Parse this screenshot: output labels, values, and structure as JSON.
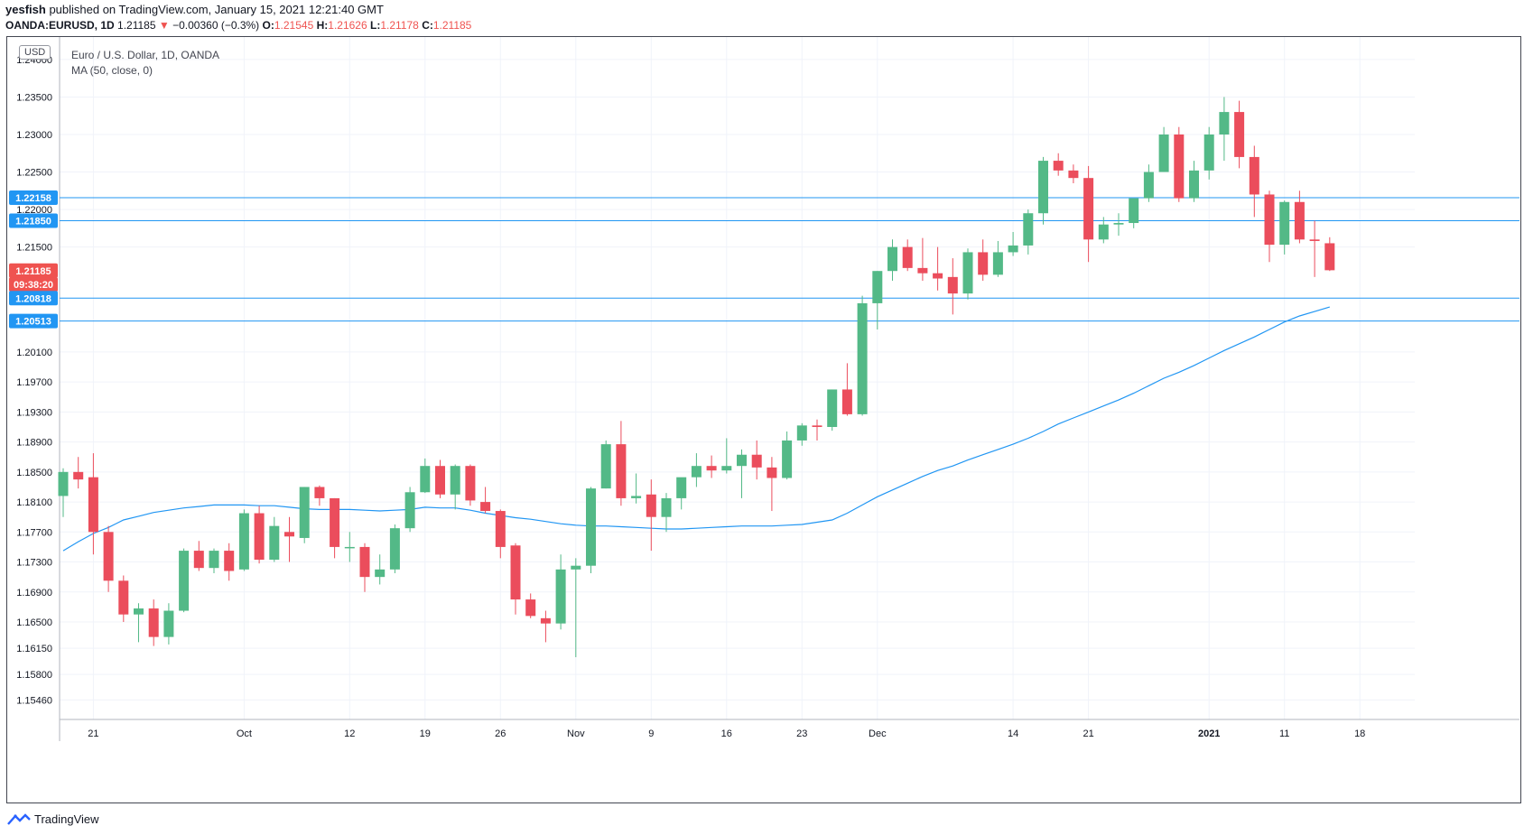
{
  "header": {
    "author": "yesfish",
    "published": "published on TradingView.com, January 15, 2021 12:21:40 GMT"
  },
  "ohlc": {
    "symbol": "OANDA:EURUSD, 1D",
    "last": "1.21185",
    "arrow": "▼",
    "change": "−0.00360 (−0.3%)",
    "o_label": "O:",
    "o": "1.21545",
    "h_label": "H:",
    "h": "1.21626",
    "l_label": "L:",
    "l": "1.21178",
    "c_label": "C:",
    "c": "1.21185"
  },
  "legend": {
    "title": "Euro / U.S. Dollar, 1D, OANDA",
    "indicator": "MA (50, close, 0)"
  },
  "currency_button": "USD",
  "footer": {
    "brand": "TradingView"
  },
  "colors": {
    "up": "#26a69a",
    "down": "#ef5350",
    "ma": "#2196f3",
    "hline": "#2196f3",
    "up_fill": "#53b987",
    "down_fill": "#eb4d5c"
  },
  "chart_data": {
    "type": "candlestick",
    "title": "Euro / U.S. Dollar, 1D, OANDA",
    "ylim": [
      1.152,
      1.243
    ],
    "y_ticks": [
      "1.24000",
      "1.23500",
      "1.23000",
      "1.22500",
      "1.22000",
      "1.21500",
      "1.20100",
      "1.19700",
      "1.19300",
      "1.18900",
      "1.18500",
      "1.18100",
      "1.17700",
      "1.17300",
      "1.16900",
      "1.16500",
      "1.16150",
      "1.15800",
      "1.15460"
    ],
    "x_ticks": [
      {
        "i": 2,
        "label": "21"
      },
      {
        "i": 12,
        "label": "Oct"
      },
      {
        "i": 19,
        "label": "12"
      },
      {
        "i": 24,
        "label": "19"
      },
      {
        "i": 29,
        "label": "26"
      },
      {
        "i": 34,
        "label": "Nov"
      },
      {
        "i": 39,
        "label": "9"
      },
      {
        "i": 44,
        "label": "16"
      },
      {
        "i": 49,
        "label": "23"
      },
      {
        "i": 54,
        "label": "Dec"
      },
      {
        "i": 63,
        "label": "14"
      },
      {
        "i": 68,
        "label": "21"
      },
      {
        "i": 76,
        "label": "2021"
      },
      {
        "i": 81,
        "label": "11"
      },
      {
        "i": 86,
        "label": "18"
      }
    ],
    "horizontal_lines": [
      1.22158,
      1.2185,
      1.20818,
      1.20513
    ],
    "price_labels": [
      {
        "value": 1.22158,
        "text": "1.22158",
        "color": "#2196f3"
      },
      {
        "value": 1.2185,
        "text": "1.21850",
        "color": "#2196f3"
      },
      {
        "value": 1.21185,
        "text": "1.21185",
        "color": "#ef5350"
      },
      {
        "value": 1.21,
        "text": "09:38:20",
        "color": "#ef5350"
      },
      {
        "value": 1.20818,
        "text": "1.20818",
        "color": "#2196f3"
      },
      {
        "value": 1.20513,
        "text": "1.20513",
        "color": "#2196f3"
      }
    ],
    "candles": [
      [
        1.1818,
        1.1855,
        1.179,
        1.185
      ],
      [
        1.185,
        1.187,
        1.1828,
        1.184
      ],
      [
        1.1843,
        1.1875,
        1.174,
        1.177
      ],
      [
        1.177,
        1.1778,
        1.169,
        1.1705
      ],
      [
        1.1705,
        1.1712,
        1.165,
        1.166
      ],
      [
        1.166,
        1.1675,
        1.1623,
        1.1668
      ],
      [
        1.1668,
        1.168,
        1.1618,
        1.163
      ],
      [
        1.163,
        1.1675,
        1.162,
        1.1665
      ],
      [
        1.1665,
        1.1748,
        1.1663,
        1.1745
      ],
      [
        1.1745,
        1.1758,
        1.1718,
        1.1722
      ],
      [
        1.1722,
        1.1748,
        1.1715,
        1.1745
      ],
      [
        1.1745,
        1.1755,
        1.1705,
        1.1718
      ],
      [
        1.172,
        1.18,
        1.1718,
        1.1795
      ],
      [
        1.1795,
        1.1805,
        1.1728,
        1.1733
      ],
      [
        1.1733,
        1.179,
        1.173,
        1.1778
      ],
      [
        1.177,
        1.179,
        1.173,
        1.1764
      ],
      [
        1.1762,
        1.183,
        1.1755,
        1.183
      ],
      [
        1.183,
        1.1832,
        1.1805,
        1.1815
      ],
      [
        1.1815,
        1.1815,
        1.1735,
        1.175
      ],
      [
        1.175,
        1.177,
        1.173,
        1.175
      ],
      [
        1.175,
        1.1755,
        1.169,
        1.171
      ],
      [
        1.171,
        1.174,
        1.17,
        1.172
      ],
      [
        1.172,
        1.178,
        1.1715,
        1.1775
      ],
      [
        1.1775,
        1.183,
        1.177,
        1.1823
      ],
      [
        1.1823,
        1.1868,
        1.1822,
        1.1858
      ],
      [
        1.1858,
        1.1866,
        1.1815,
        1.182
      ],
      [
        1.182,
        1.186,
        1.18,
        1.1858
      ],
      [
        1.1858,
        1.186,
        1.1805,
        1.1812
      ],
      [
        1.181,
        1.183,
        1.1795,
        1.1798
      ],
      [
        1.1798,
        1.18,
        1.1735,
        1.175
      ],
      [
        1.1752,
        1.1755,
        1.166,
        1.168
      ],
      [
        1.168,
        1.1688,
        1.1655,
        1.1658
      ],
      [
        1.1655,
        1.1665,
        1.1623,
        1.1648
      ],
      [
        1.1648,
        1.174,
        1.164,
        1.172
      ],
      [
        1.172,
        1.1735,
        1.1603,
        1.1725
      ],
      [
        1.1725,
        1.183,
        1.1715,
        1.1828
      ],
      [
        1.1828,
        1.1892,
        1.1828,
        1.1887
      ],
      [
        1.1887,
        1.1918,
        1.1805,
        1.1815
      ],
      [
        1.1815,
        1.1848,
        1.1808,
        1.1818
      ],
      [
        1.182,
        1.184,
        1.1745,
        1.179
      ],
      [
        1.179,
        1.1822,
        1.177,
        1.1815
      ],
      [
        1.1815,
        1.184,
        1.18,
        1.1843
      ],
      [
        1.1843,
        1.1875,
        1.183,
        1.1858
      ],
      [
        1.1858,
        1.1872,
        1.1842,
        1.1852
      ],
      [
        1.1852,
        1.1895,
        1.1848,
        1.1858
      ],
      [
        1.1858,
        1.188,
        1.1815,
        1.1873
      ],
      [
        1.1873,
        1.1892,
        1.184,
        1.1856
      ],
      [
        1.1856,
        1.187,
        1.1798,
        1.1842
      ],
      [
        1.1842,
        1.1904,
        1.184,
        1.1892
      ],
      [
        1.1892,
        1.1915,
        1.1885,
        1.1912
      ],
      [
        1.1912,
        1.192,
        1.1892,
        1.191
      ],
      [
        1.191,
        1.196,
        1.1905,
        1.196
      ],
      [
        1.196,
        1.1995,
        1.1925,
        1.1927
      ],
      [
        1.1927,
        1.2085,
        1.1925,
        1.2075
      ],
      [
        1.2075,
        1.2118,
        1.204,
        1.2118
      ],
      [
        1.2118,
        1.216,
        1.2105,
        1.215
      ],
      [
        1.215,
        1.216,
        1.2118,
        1.2122
      ],
      [
        1.2122,
        1.2162,
        1.2105,
        1.2115
      ],
      [
        1.2115,
        1.215,
        1.2092,
        1.2108
      ],
      [
        1.211,
        1.2135,
        1.206,
        1.2088
      ],
      [
        1.2088,
        1.2148,
        1.208,
        1.2143
      ],
      [
        1.2143,
        1.216,
        1.2105,
        1.2113
      ],
      [
        1.2113,
        1.2158,
        1.211,
        1.2143
      ],
      [
        1.2143,
        1.217,
        1.2138,
        1.2152
      ],
      [
        1.2152,
        1.22,
        1.214,
        1.2195
      ],
      [
        1.2195,
        1.227,
        1.218,
        1.2265
      ],
      [
        1.2265,
        1.2275,
        1.2245,
        1.2252
      ],
      [
        1.2252,
        1.226,
        1.2235,
        1.2242
      ],
      [
        1.2242,
        1.2258,
        1.213,
        1.216
      ],
      [
        1.216,
        1.219,
        1.2155,
        1.218
      ],
      [
        1.218,
        1.2195,
        1.2165,
        1.2182
      ],
      [
        1.2182,
        1.221,
        1.2175,
        1.2215
      ],
      [
        1.2215,
        1.226,
        1.221,
        1.225
      ],
      [
        1.225,
        1.231,
        1.225,
        1.23
      ],
      [
        1.23,
        1.231,
        1.221,
        1.2215
      ],
      [
        1.2215,
        1.2265,
        1.221,
        1.2252
      ],
      [
        1.2252,
        1.231,
        1.224,
        1.23
      ],
      [
        1.23,
        1.235,
        1.2265,
        1.233
      ],
      [
        1.233,
        1.2345,
        1.2255,
        1.227
      ],
      [
        1.227,
        1.2285,
        1.219,
        1.222
      ],
      [
        1.222,
        1.2225,
        1.213,
        1.2153
      ],
      [
        1.2153,
        1.2212,
        1.214,
        1.221
      ],
      [
        1.221,
        1.2225,
        1.2155,
        1.216
      ],
      [
        1.216,
        1.2185,
        1.211,
        1.2158
      ],
      [
        1.2155,
        1.2163,
        1.2118,
        1.2119
      ]
    ],
    "ma50": [
      1.1745,
      1.1757,
      1.1768,
      1.1776,
      1.1786,
      1.1791,
      1.1796,
      1.1799,
      1.1802,
      1.1804,
      1.1806,
      1.1806,
      1.1806,
      1.1805,
      1.1805,
      1.1803,
      1.1801,
      1.18,
      1.18,
      1.18,
      1.1799,
      1.1798,
      1.1799,
      1.18,
      1.1803,
      1.1802,
      1.1802,
      1.1799,
      1.1795,
      1.1792,
      1.1789,
      1.1787,
      1.1784,
      1.1781,
      1.1779,
      1.1778,
      1.1778,
      1.1777,
      1.1776,
      1.1775,
      1.1774,
      1.1774,
      1.1775,
      1.1776,
      1.1777,
      1.1778,
      1.1778,
      1.1778,
      1.1779,
      1.178,
      1.1783,
      1.1786,
      1.1795,
      1.1806,
      1.1817,
      1.1826,
      1.1835,
      1.1844,
      1.1852,
      1.1858,
      1.1866,
      1.1873,
      1.188,
      1.1887,
      1.1895,
      1.1904,
      1.1914,
      1.1922,
      1.193,
      1.1938,
      1.1946,
      1.1955,
      1.1965,
      1.1975,
      1.1983,
      1.1992,
      1.2002,
      1.2012,
      1.2021,
      1.203,
      1.204,
      1.205,
      1.2058,
      1.2064,
      1.207
    ]
  }
}
